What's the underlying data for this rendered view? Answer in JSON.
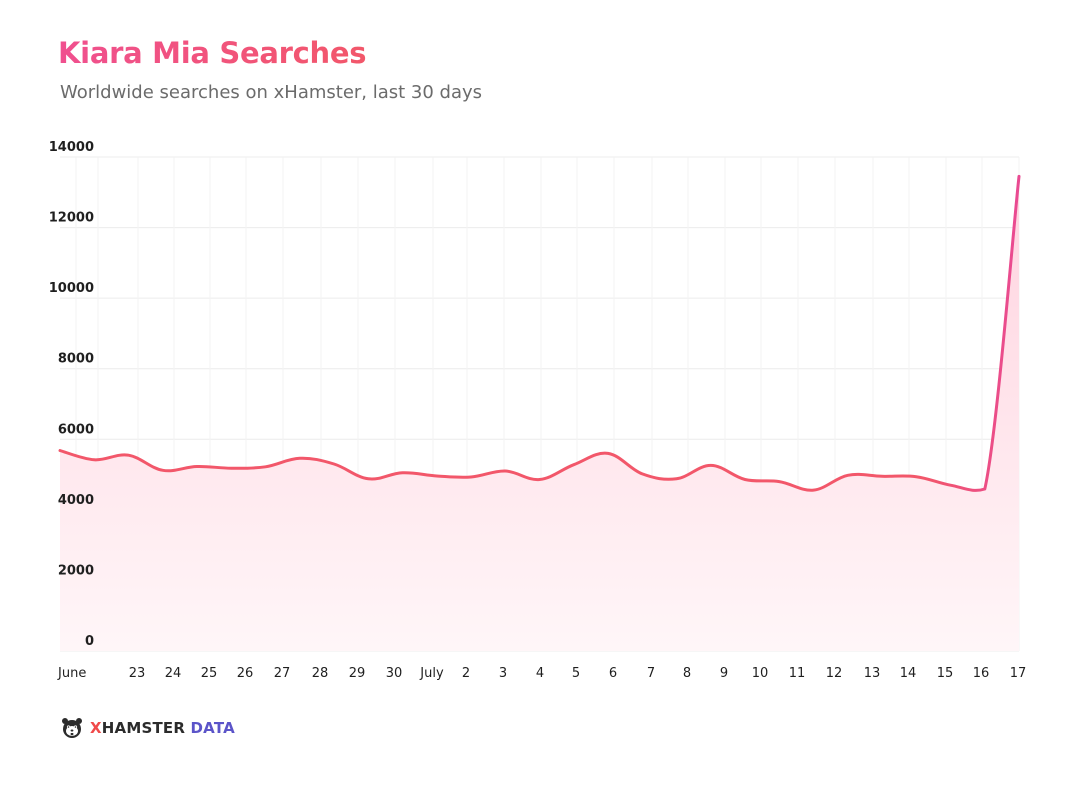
{
  "title": "Kiara Mia Searches",
  "subtitle": "Worldwide searches on xHamster, last 30 days",
  "brand": {
    "part1": "X",
    "part2": "HAMSTER",
    "part3": "DATA",
    "icon": "hamster-logo-icon"
  },
  "colors": {
    "line": "#f2576a",
    "line_end": "#e94a92",
    "fill_top": "#ffd3df",
    "fill_bottom": "#fff6f8",
    "title_start": "#f0508f",
    "title_end": "#f2576a",
    "grid": "#ececec"
  },
  "chart_data": {
    "type": "area",
    "title": "Kiara Mia Searches",
    "subtitle": "Worldwide searches on xHamster, last 30 days",
    "xlabel": "",
    "ylabel": "",
    "ylim": [
      0,
      14000
    ],
    "yticks": [
      0,
      2000,
      4000,
      6000,
      8000,
      10000,
      12000,
      14000
    ],
    "x_tick_labels": [
      "June",
      "23",
      "24",
      "25",
      "26",
      "27",
      "28",
      "29",
      "30",
      "July",
      "2",
      "3",
      "4",
      "5",
      "6",
      "7",
      "8",
      "9",
      "10",
      "11",
      "12",
      "13",
      "14",
      "15",
      "16",
      "17"
    ],
    "grid": true,
    "legend": "none",
    "series": [
      {
        "values": [
          5680,
          5420,
          5550,
          5120,
          5230,
          5180,
          5220,
          5460,
          5300,
          4880,
          5050,
          4960,
          4930,
          5100,
          4860,
          5280,
          5600,
          5020,
          4880,
          5260,
          4860,
          4800,
          4560,
          4980,
          4950,
          4940,
          4700,
          4590,
          13450
        ]
      }
    ]
  }
}
